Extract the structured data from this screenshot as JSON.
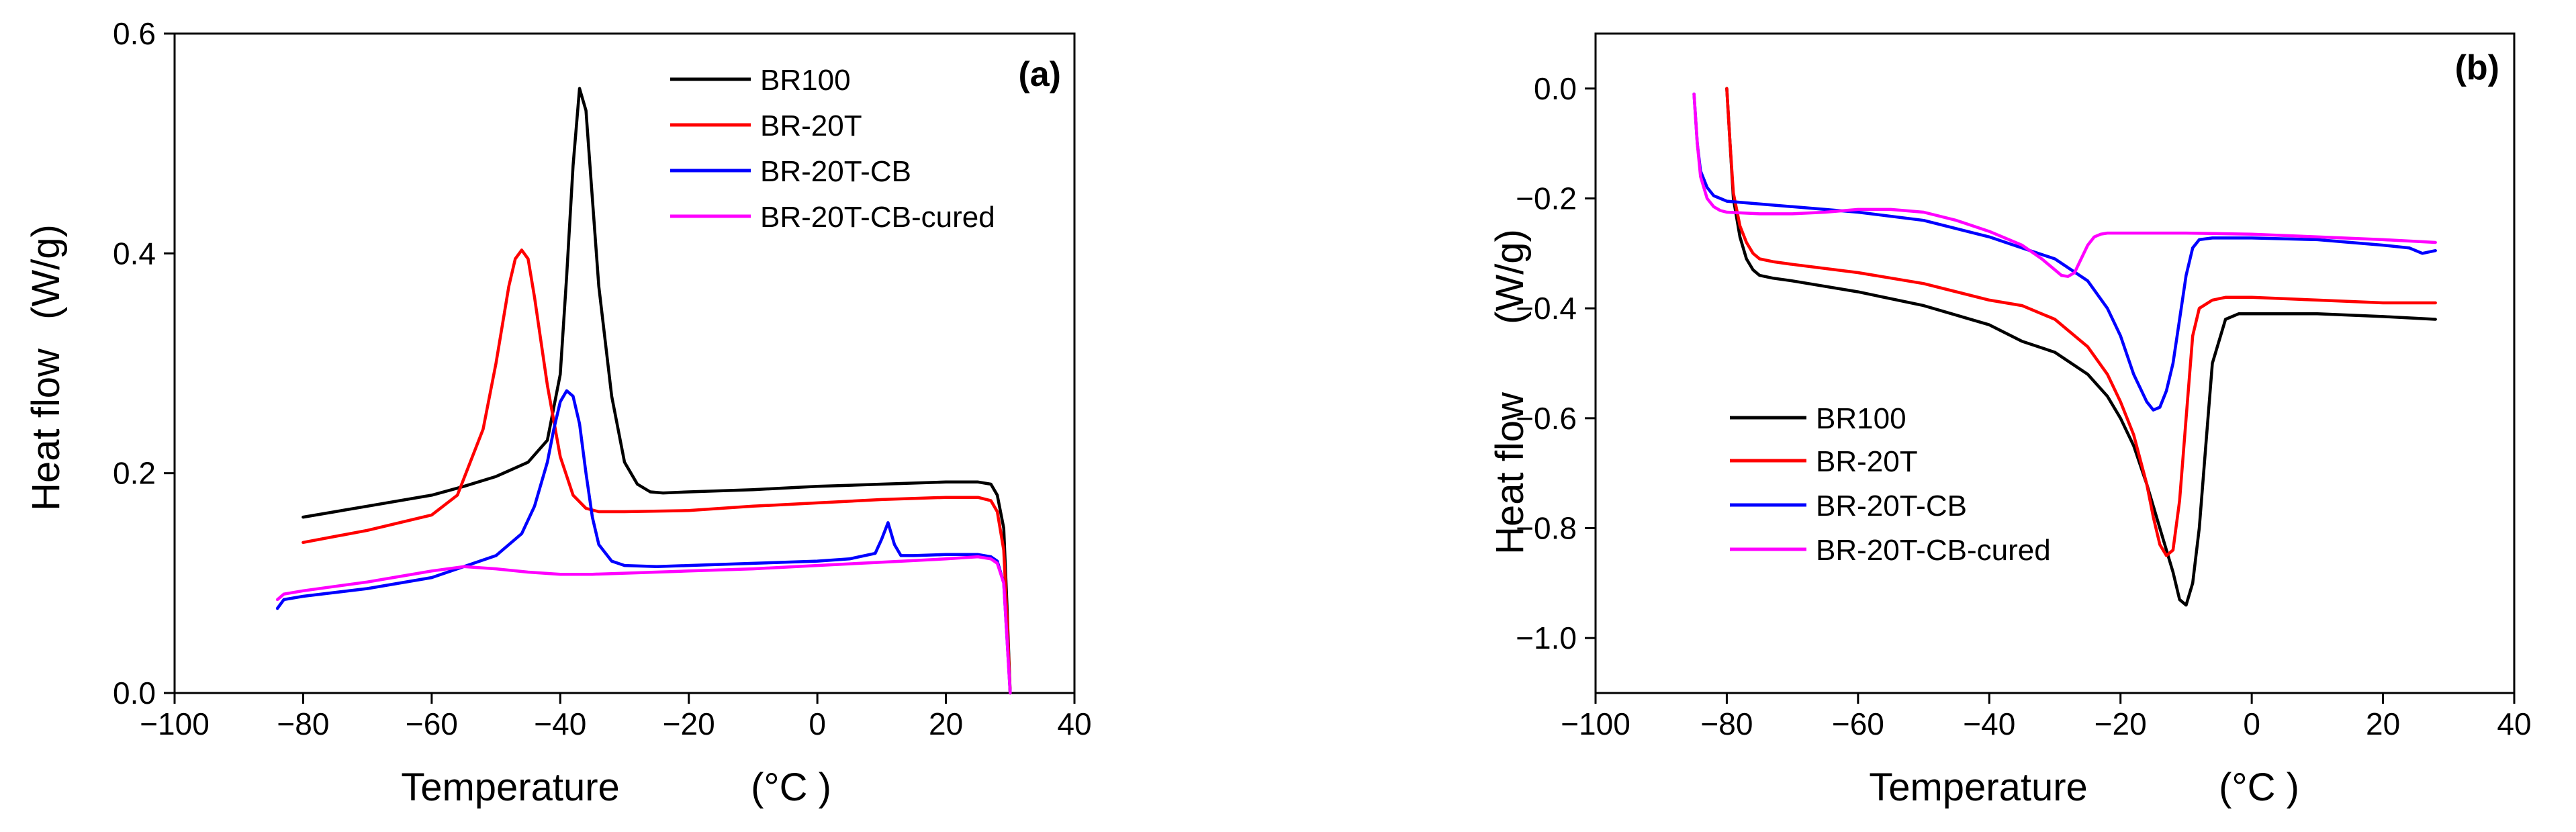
{
  "chart_data": [
    {
      "type": "line",
      "panel_label": "(a)",
      "xlabel": "Temperature",
      "xlabel_unit": "(°C )",
      "ylabel": "Heat flow",
      "ylabel_unit": "(W/g)",
      "xlim": [
        -100,
        40
      ],
      "ylim": [
        0,
        0.6
      ],
      "xticks": [
        -100,
        -80,
        -60,
        -40,
        -20,
        0,
        20,
        40
      ],
      "xtick_labels": [
        "−100",
        "−80",
        "−60",
        "−40",
        "−20",
        "0",
        "20",
        "40"
      ],
      "yticks": [
        0.0,
        0.2,
        0.4,
        0.6
      ],
      "ytick_labels": [
        "0.0",
        "0.2",
        "0.4",
        "0.6"
      ],
      "legend_position": "top-right",
      "series": [
        {
          "name": "BR100",
          "color": "#000000",
          "x": [
            -80,
            -70,
            -60,
            -55,
            -50,
            -45,
            -42,
            -40,
            -39,
            -38,
            -37,
            -36,
            -35,
            -34,
            -32,
            -30,
            -28,
            -26,
            -24,
            -20,
            -10,
            0,
            10,
            20,
            25,
            27,
            28,
            29,
            29.5,
            30
          ],
          "y": [
            0.16,
            0.17,
            0.18,
            0.188,
            0.197,
            0.21,
            0.23,
            0.29,
            0.38,
            0.48,
            0.55,
            0.53,
            0.45,
            0.37,
            0.27,
            0.21,
            0.19,
            0.183,
            0.182,
            0.183,
            0.185,
            0.188,
            0.19,
            0.192,
            0.192,
            0.19,
            0.18,
            0.15,
            0.08,
            0.0
          ]
        },
        {
          "name": "BR-20T",
          "color": "#ff0000",
          "x": [
            -80,
            -70,
            -60,
            -56,
            -52,
            -50,
            -48,
            -47,
            -46,
            -45,
            -44,
            -42,
            -40,
            -38,
            -36,
            -34,
            -30,
            -20,
            -10,
            0,
            10,
            20,
            25,
            27,
            28,
            29,
            29.5,
            30
          ],
          "y": [
            0.137,
            0.148,
            0.162,
            0.18,
            0.24,
            0.3,
            0.37,
            0.395,
            0.403,
            0.395,
            0.36,
            0.28,
            0.215,
            0.18,
            0.168,
            0.165,
            0.165,
            0.166,
            0.17,
            0.173,
            0.176,
            0.178,
            0.178,
            0.175,
            0.165,
            0.13,
            0.07,
            0.0
          ]
        },
        {
          "name": "BR-20T-CB",
          "color": "#0000ff",
          "x": [
            -84,
            -83,
            -80,
            -70,
            -60,
            -50,
            -46,
            -44,
            -42,
            -41,
            -40,
            -39,
            -38,
            -37,
            -36,
            -35,
            -34,
            -32,
            -30,
            -25,
            -20,
            -10,
            0,
            5,
            9,
            10,
            11,
            12,
            13,
            15,
            20,
            25,
            27,
            28,
            29,
            29.5,
            30
          ],
          "y": [
            0.077,
            0.085,
            0.088,
            0.095,
            0.105,
            0.125,
            0.145,
            0.17,
            0.21,
            0.24,
            0.265,
            0.275,
            0.27,
            0.245,
            0.2,
            0.16,
            0.135,
            0.12,
            0.116,
            0.115,
            0.116,
            0.118,
            0.12,
            0.122,
            0.127,
            0.14,
            0.155,
            0.135,
            0.125,
            0.125,
            0.126,
            0.126,
            0.124,
            0.12,
            0.1,
            0.05,
            0.0
          ]
        },
        {
          "name": "BR-20T-CB-cured",
          "color": "#ff00ff",
          "x": [
            -84,
            -83,
            -80,
            -75,
            -70,
            -65,
            -60,
            -55,
            -50,
            -45,
            -40,
            -35,
            -30,
            -20,
            -10,
            0,
            10,
            20,
            25,
            27,
            28,
            29,
            29.5,
            30
          ],
          "y": [
            0.085,
            0.09,
            0.093,
            0.097,
            0.101,
            0.106,
            0.111,
            0.115,
            0.113,
            0.11,
            0.108,
            0.108,
            0.109,
            0.111,
            0.113,
            0.116,
            0.119,
            0.122,
            0.124,
            0.122,
            0.118,
            0.1,
            0.05,
            0.0
          ]
        }
      ]
    },
    {
      "type": "line",
      "panel_label": "(b)",
      "xlabel": "Temperature",
      "xlabel_unit": "(°C )",
      "ylabel": "Heat flow",
      "ylabel_unit": "(W/g)",
      "xlim": [
        -100,
        40
      ],
      "ylim": [
        -1.1,
        0.1
      ],
      "xticks": [
        -100,
        -80,
        -60,
        -40,
        -20,
        0,
        20,
        40
      ],
      "xtick_labels": [
        "−100",
        "−80",
        "−60",
        "−40",
        "−20",
        "0",
        "20",
        "40"
      ],
      "yticks": [
        0.0,
        -0.2,
        -0.4,
        -0.6,
        -0.8,
        -1.0
      ],
      "ytick_labels": [
        "0.0",
        "−0.2",
        "−0.4",
        "−0.6",
        "−0.8",
        "−1.0"
      ],
      "legend_position": "bottom-left",
      "series": [
        {
          "name": "BR100",
          "color": "#000000",
          "x": [
            -80,
            -79.5,
            -79,
            -78,
            -77,
            -76,
            -75,
            -73,
            -70,
            -60,
            -50,
            -40,
            -35,
            -30,
            -25,
            -22,
            -20,
            -18,
            -16,
            -14,
            -12,
            -11,
            -10,
            -9,
            -8,
            -7,
            -6,
            -4,
            -2,
            0,
            10,
            20,
            28
          ],
          "y": [
            0.0,
            -0.1,
            -0.2,
            -0.27,
            -0.31,
            -0.33,
            -0.34,
            -0.345,
            -0.35,
            -0.37,
            -0.395,
            -0.43,
            -0.46,
            -0.48,
            -0.52,
            -0.56,
            -0.6,
            -0.65,
            -0.72,
            -0.8,
            -0.88,
            -0.93,
            -0.94,
            -0.9,
            -0.8,
            -0.65,
            -0.5,
            -0.42,
            -0.41,
            -0.41,
            -0.41,
            -0.415,
            -0.42
          ]
        },
        {
          "name": "BR-20T",
          "color": "#ff0000",
          "x": [
            -80,
            -79.5,
            -79,
            -78,
            -77,
            -76,
            -75,
            -73,
            -70,
            -60,
            -50,
            -40,
            -35,
            -30,
            -25,
            -22,
            -20,
            -18,
            -16,
            -15,
            -14,
            -13,
            -12,
            -11,
            -10,
            -9,
            -8,
            -6,
            -4,
            0,
            10,
            20,
            28
          ],
          "y": [
            0.0,
            -0.1,
            -0.19,
            -0.25,
            -0.28,
            -0.3,
            -0.31,
            -0.315,
            -0.32,
            -0.335,
            -0.355,
            -0.385,
            -0.395,
            -0.42,
            -0.47,
            -0.52,
            -0.57,
            -0.63,
            -0.72,
            -0.78,
            -0.83,
            -0.85,
            -0.84,
            -0.75,
            -0.6,
            -0.45,
            -0.4,
            -0.385,
            -0.38,
            -0.38,
            -0.385,
            -0.39,
            -0.39
          ]
        },
        {
          "name": "BR-20T-CB",
          "color": "#0000ff",
          "x": [
            -85,
            -84.5,
            -84,
            -83,
            -82,
            -81,
            -80,
            -75,
            -70,
            -60,
            -50,
            -40,
            -35,
            -30,
            -25,
            -22,
            -20,
            -18,
            -16,
            -15,
            -14,
            -13,
            -12,
            -11,
            -10,
            -9,
            -8,
            -6,
            -4,
            0,
            10,
            20,
            24,
            26,
            28
          ],
          "y": [
            -0.01,
            -0.1,
            -0.15,
            -0.18,
            -0.195,
            -0.2,
            -0.205,
            -0.21,
            -0.215,
            -0.225,
            -0.24,
            -0.27,
            -0.29,
            -0.31,
            -0.35,
            -0.4,
            -0.45,
            -0.52,
            -0.57,
            -0.585,
            -0.58,
            -0.55,
            -0.5,
            -0.42,
            -0.34,
            -0.29,
            -0.275,
            -0.272,
            -0.272,
            -0.272,
            -0.275,
            -0.285,
            -0.29,
            -0.3,
            -0.295
          ]
        },
        {
          "name": "BR-20T-CB-cured",
          "color": "#ff00ff",
          "x": [
            -85,
            -84.5,
            -84,
            -83,
            -82,
            -81,
            -80,
            -75,
            -70,
            -65,
            -60,
            -55,
            -50,
            -45,
            -40,
            -35,
            -32,
            -30,
            -29,
            -28,
            -27,
            -26,
            -25,
            -24,
            -23,
            -22,
            -20,
            -10,
            0,
            10,
            20,
            28
          ],
          "y": [
            -0.01,
            -0.1,
            -0.16,
            -0.2,
            -0.215,
            -0.222,
            -0.225,
            -0.228,
            -0.228,
            -0.225,
            -0.22,
            -0.22,
            -0.225,
            -0.24,
            -0.26,
            -0.285,
            -0.31,
            -0.33,
            -0.34,
            -0.342,
            -0.335,
            -0.31,
            -0.285,
            -0.27,
            -0.265,
            -0.263,
            -0.263,
            -0.263,
            -0.265,
            -0.27,
            -0.275,
            -0.28
          ]
        }
      ]
    }
  ]
}
